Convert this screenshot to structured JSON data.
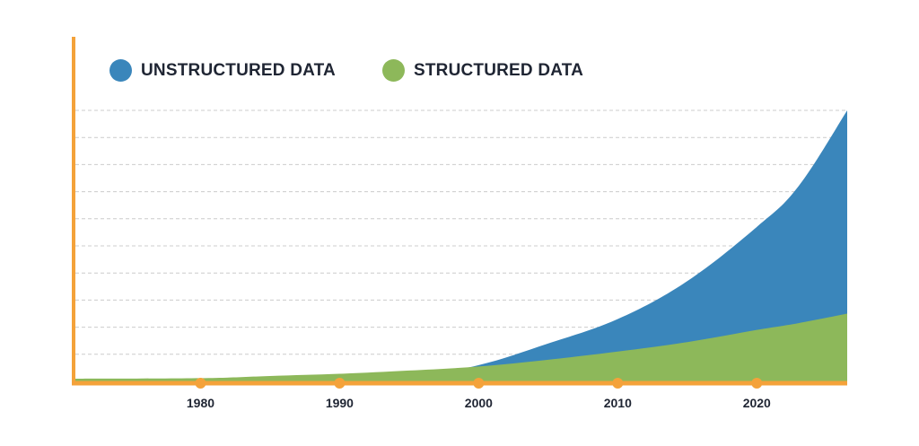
{
  "colors": {
    "axis": "#f4a23a",
    "unstructured": "#3a86bb",
    "structured": "#8db85a",
    "grid": "#cccccc",
    "text": "#1f2533"
  },
  "legend": {
    "unstructured_label": "UNSTRUCTURED DATA",
    "structured_label": "STRUCTURED DATA"
  },
  "chart_data": {
    "type": "area",
    "title": "",
    "xlabel": "",
    "ylabel": "",
    "x_ticks": [
      1980,
      1990,
      2000,
      2010,
      2020
    ],
    "xlim": [
      1971,
      2026.5
    ],
    "ylim": [
      0,
      100
    ],
    "grid": true,
    "gridlines": 10,
    "legend_position": "top-left",
    "stacked": false,
    "series": [
      {
        "name": "UNSTRUCTURED DATA",
        "color": "#3a86bb",
        "x": [
          1971,
          1980,
          1990,
          1995,
          2000,
          2005,
          2010,
          2015,
          2020,
          2023,
          2026.5
        ],
        "values": [
          1,
          0,
          0.5,
          1.5,
          6,
          14,
          23,
          37,
          57,
          72,
          100
        ]
      },
      {
        "name": "STRUCTURED DATA",
        "color": "#8db85a",
        "x": [
          1971,
          1980,
          1985,
          1990,
          1995,
          2000,
          2005,
          2010,
          2015,
          2020,
          2023,
          2026.5
        ],
        "values": [
          1,
          1.2,
          2,
          2.8,
          4,
          5.5,
          8,
          11,
          14.5,
          19,
          21.5,
          25
        ]
      }
    ]
  }
}
